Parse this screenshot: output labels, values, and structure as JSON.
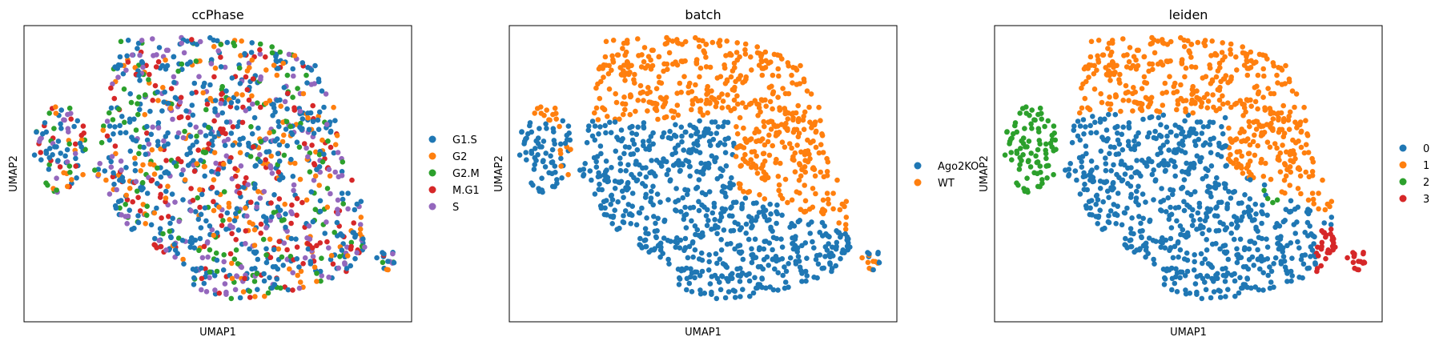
{
  "chart_data": [
    {
      "type": "scatter",
      "title": "ccPhase",
      "xlabel": "UMAP1",
      "ylabel": "UMAP2",
      "grid": false,
      "ticks": "none",
      "legend_placement": "right-outside",
      "colors": {
        "blue": "#1f77b4",
        "orange": "#ff7f0e",
        "green": "#2ca02c",
        "red": "#d62728",
        "purple": "#9467bd"
      },
      "series": [
        {
          "name": "G1.S",
          "color": "#1f77b4"
        },
        {
          "name": "G2",
          "color": "#ff7f0e"
        },
        {
          "name": "G2.M",
          "color": "#2ca02c"
        },
        {
          "name": "M.G1",
          "color": "#d62728"
        },
        {
          "name": "S",
          "color": "#9467bd"
        }
      ]
    },
    {
      "type": "scatter",
      "title": "batch",
      "xlabel": "UMAP1",
      "ylabel": "UMAP2",
      "grid": false,
      "ticks": "none",
      "legend_placement": "right-outside",
      "series": [
        {
          "name": "Ago2KO",
          "color": "#1f77b4"
        },
        {
          "name": "WT",
          "color": "#ff7f0e"
        }
      ]
    },
    {
      "type": "scatter",
      "title": "leiden",
      "xlabel": "UMAP1",
      "ylabel": "UMAP2",
      "grid": false,
      "ticks": "none",
      "legend_placement": "right-outside",
      "series": [
        {
          "name": "0",
          "color": "#1f77b4"
        },
        {
          "name": "1",
          "color": "#ff7f0e"
        },
        {
          "name": "2",
          "color": "#2ca02c"
        },
        {
          "name": "3",
          "color": "#d62728"
        }
      ]
    }
  ]
}
